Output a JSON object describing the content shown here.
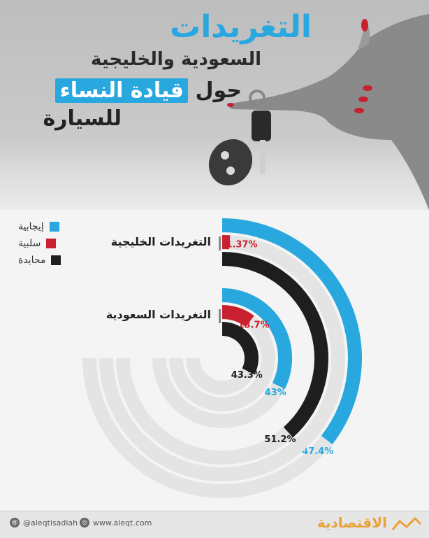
{
  "title": {
    "main": "التغريدات",
    "sub": "السعودية والخليجية",
    "line3_prefix": "حول",
    "line3_highlight": "قيادة النساء",
    "line4": "للسيارة"
  },
  "legend": [
    {
      "label": "إيجابية",
      "color": "#29a8e0"
    },
    {
      "label": "سلبية",
      "color": "#c8202e"
    },
    {
      "label": "محايدة",
      "color": "#1e1e1e"
    }
  ],
  "colors": {
    "positive": "#29a8e0",
    "negative": "#c8202e",
    "neutral": "#1e1e1e",
    "title": "#29a8e0",
    "brand": "#e8a23a"
  },
  "footer": {
    "handle": "@aleqtisadiah",
    "website": "www.aleqt.com",
    "brand": "الاقتصادية"
  },
  "chart_data": {
    "type": "radial-bar",
    "title": "التغريدات السعودية والخليجية حول قيادة النساء للسيارة",
    "groups": [
      {
        "name": "التغريدات الخليجية",
        "series": [
          {
            "name": "إيجابية",
            "value": 47.4,
            "label": "47.4%"
          },
          {
            "name": "سلبية",
            "value": 1.37,
            "label": "1.37%"
          },
          {
            "name": "محايدة",
            "value": 51.2,
            "label": "51.2%"
          }
        ]
      },
      {
        "name": "التغريدات السعودية",
        "series": [
          {
            "name": "إيجابية",
            "value": 43,
            "label": "43%"
          },
          {
            "name": "سلبية",
            "value": 13.7,
            "label": "13.7%"
          },
          {
            "name": "محايدة",
            "value": 43.3,
            "label": "43.3%"
          }
        ]
      }
    ]
  }
}
